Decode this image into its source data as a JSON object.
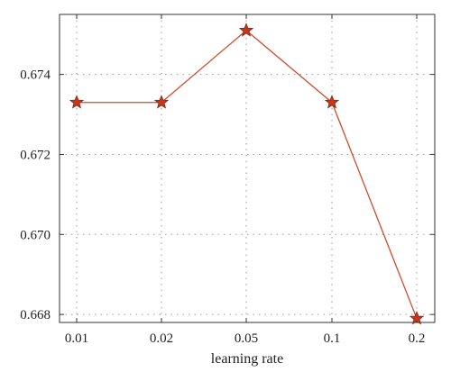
{
  "chart_data": {
    "type": "line",
    "title": "",
    "xlabel": "learning rate",
    "ylabel": "",
    "categories": [
      "0.01",
      "0.02",
      "0.05",
      "0.1",
      "0.2"
    ],
    "series": [
      {
        "values": [
          0.6733,
          0.6733,
          0.6751,
          0.6733,
          0.6679
        ]
      }
    ],
    "ylim": [
      0.6678,
      0.6755
    ],
    "yticks": [
      0.668,
      0.67,
      0.672,
      0.674
    ],
    "ytick_labels": [
      "0.668",
      "0.670",
      "0.672",
      "0.674"
    ],
    "grid": true,
    "marker": "star",
    "colors": {
      "line": "#d04a2a",
      "marker_fill": "#c0391e",
      "marker_edge": "#8a2412"
    }
  }
}
